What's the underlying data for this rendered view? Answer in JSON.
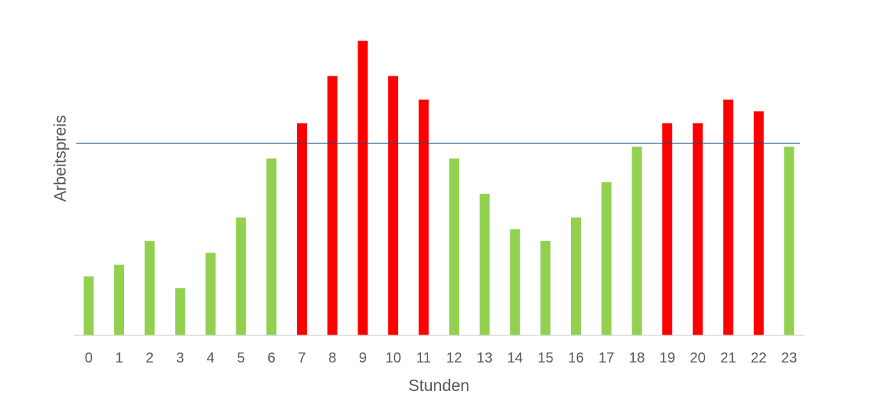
{
  "chart_data": {
    "type": "bar",
    "title": "",
    "xlabel": "Stunden",
    "ylabel": "Arbeitspreis",
    "categories": [
      "0",
      "1",
      "2",
      "3",
      "4",
      "5",
      "6",
      "7",
      "8",
      "9",
      "10",
      "11",
      "12",
      "13",
      "14",
      "15",
      "16",
      "17",
      "18",
      "19",
      "20",
      "21",
      "22",
      "23"
    ],
    "values": [
      5,
      6,
      8,
      4,
      7,
      10,
      15,
      18,
      22,
      25,
      22,
      20,
      15,
      12,
      9,
      8,
      10,
      13,
      16,
      18,
      18,
      20,
      19,
      16
    ],
    "above_threshold": [
      false,
      false,
      false,
      false,
      false,
      false,
      false,
      true,
      true,
      true,
      true,
      true,
      false,
      false,
      false,
      false,
      false,
      false,
      false,
      true,
      true,
      true,
      true,
      false
    ],
    "threshold": 16.3,
    "ylim": [
      0,
      25
    ],
    "grid": false,
    "legend": "none",
    "y_tick_labels_shown": false
  },
  "colors": {
    "below_threshold": "#92d050",
    "above_threshold": "#ff0000",
    "threshold_line": "#1f4e79",
    "axis_line": "#d9d9d9",
    "text": "#595959"
  }
}
